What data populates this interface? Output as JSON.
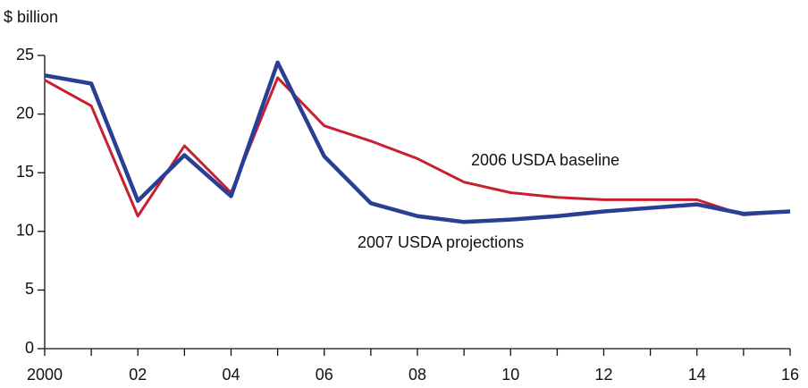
{
  "chart_data": {
    "type": "line",
    "y_label": "$ billion",
    "categories": [
      "2000",
      null,
      "02",
      null,
      "04",
      null,
      "06",
      null,
      "08",
      null,
      "10",
      null,
      "12",
      null,
      "14",
      null,
      "16"
    ],
    "series": [
      {
        "name": "2006 USDA baseline",
        "color": "#c8202f",
        "values": [
          22.9,
          20.7,
          11.3,
          17.3,
          13.3,
          23.1,
          19.0,
          17.7,
          16.2,
          14.2,
          13.3,
          12.9,
          12.7,
          12.7,
          12.7,
          11.4,
          11.7
        ]
      },
      {
        "name": "2007 USDA projections",
        "color": "#2a3f93",
        "values": [
          23.3,
          22.6,
          12.6,
          16.5,
          13.0,
          24.4,
          16.4,
          12.4,
          11.3,
          10.8,
          11.0,
          11.3,
          11.7,
          12.0,
          12.3,
          11.5,
          11.7
        ]
      }
    ],
    "ylim": [
      0,
      25
    ],
    "yticks": [
      0,
      5,
      10,
      15,
      20,
      25
    ]
  }
}
